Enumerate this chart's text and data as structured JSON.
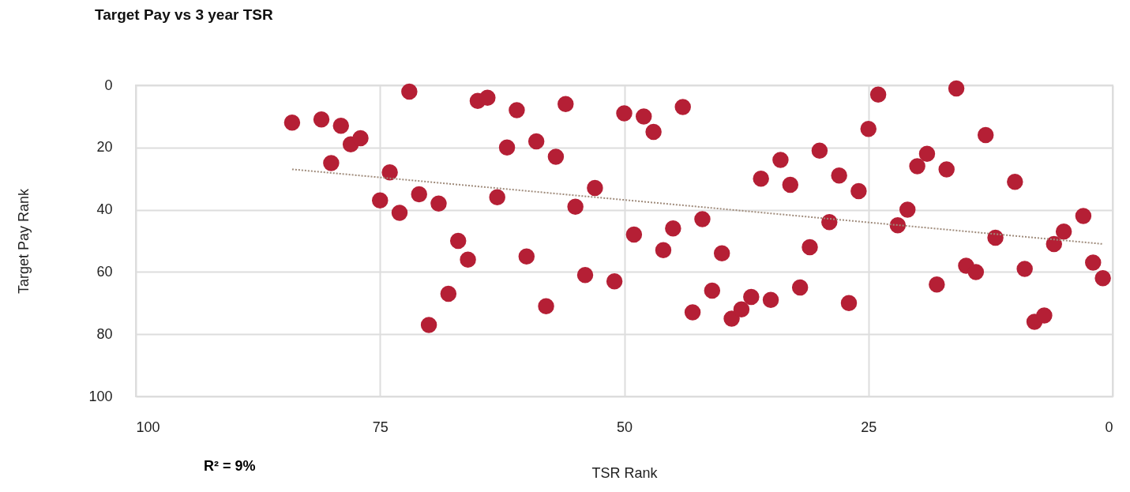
{
  "chart_data": {
    "type": "scatter",
    "title": "Target Pay vs 3 year TSR",
    "xlabel": "TSR Rank",
    "ylabel": "Target Pay Rank",
    "xlim": [
      100,
      0
    ],
    "xticks": [
      100,
      75,
      50,
      25,
      0
    ],
    "ylim": [
      100,
      0
    ],
    "yticks": [
      0,
      20,
      40,
      60,
      80,
      100
    ],
    "grid": true,
    "marker": "circle",
    "annotations": [
      "R² = 9%"
    ],
    "series": [
      {
        "color": "#b51f35",
        "x": [
          84,
          81,
          79,
          80,
          78,
          77,
          75,
          74,
          73,
          72,
          71,
          70,
          69,
          68,
          67,
          66,
          65,
          64,
          63,
          62,
          61,
          60,
          59,
          58,
          57,
          56,
          55,
          54,
          53,
          51,
          50,
          49,
          48,
          47,
          46,
          45,
          44,
          43,
          42,
          41,
          40,
          39,
          38,
          37,
          36,
          35,
          34,
          33,
          32,
          31,
          30,
          29,
          28,
          27,
          26,
          25,
          24,
          22,
          21,
          20,
          19,
          18,
          17,
          16,
          15,
          14,
          13,
          12,
          10,
          9,
          8,
          7,
          6,
          5,
          3,
          2,
          1
        ],
        "values": [
          12,
          11,
          13,
          25,
          19,
          17,
          37,
          28,
          41,
          2,
          35,
          77,
          38,
          67,
          50,
          56,
          5,
          4,
          36,
          20,
          8,
          55,
          18,
          71,
          23,
          6,
          39,
          61,
          33,
          63,
          9,
          48,
          10,
          15,
          53,
          46,
          7,
          73,
          43,
          66,
          54,
          75,
          72,
          68,
          30,
          69,
          24,
          32,
          65,
          52,
          21,
          44,
          29,
          70,
          34,
          14,
          3,
          45,
          40,
          26,
          22,
          64,
          27,
          1,
          58,
          60,
          16,
          49,
          31,
          59,
          76,
          74,
          51,
          47,
          42,
          57,
          62
        ]
      },
      {
        "type": "line",
        "color": "#a08c7c",
        "line_style": "dotted",
        "marker": "none",
        "x": [
          84,
          1
        ],
        "values": [
          27,
          51
        ]
      }
    ]
  }
}
